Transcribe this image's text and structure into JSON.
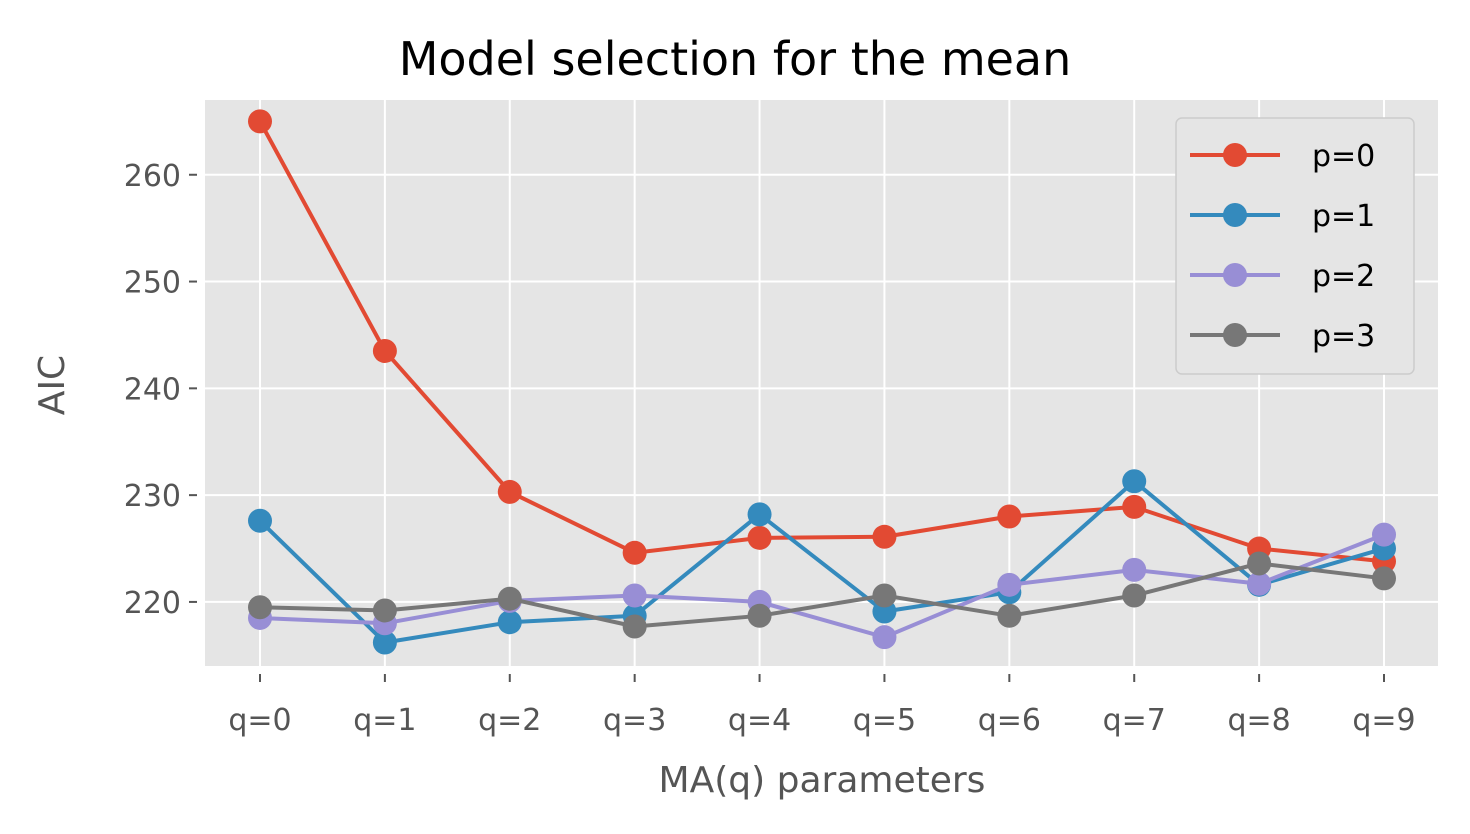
{
  "chart_data": {
    "type": "line",
    "title": "Model selection for the mean",
    "xlabel": "MA(q) parameters",
    "ylabel": "AIC",
    "categories": [
      "q=0",
      "q=1",
      "q=2",
      "q=3",
      "q=4",
      "q=5",
      "q=6",
      "q=7",
      "q=8",
      "q=9"
    ],
    "yticks": [
      220,
      230,
      240,
      250,
      260
    ],
    "ylim": [
      214,
      267
    ],
    "grid": true,
    "legend_position": "top-right",
    "series": [
      {
        "name": "p=0",
        "color": "#E24A33",
        "values": [
          265.0,
          243.5,
          230.3,
          224.6,
          226.0,
          226.1,
          228.0,
          228.9,
          225.0,
          223.8
        ]
      },
      {
        "name": "p=1",
        "color": "#348ABD",
        "values": [
          227.6,
          216.2,
          218.1,
          218.7,
          228.2,
          219.1,
          220.9,
          231.3,
          221.6,
          225.0
        ]
      },
      {
        "name": "p=2",
        "color": "#988ED5",
        "values": [
          218.5,
          218.0,
          220.1,
          220.6,
          220.0,
          216.7,
          221.6,
          223.0,
          221.7,
          226.3
        ]
      },
      {
        "name": "p=3",
        "color": "#777777",
        "values": [
          219.5,
          219.2,
          220.3,
          217.7,
          218.7,
          220.6,
          218.7,
          220.6,
          223.6,
          222.2
        ]
      }
    ]
  }
}
